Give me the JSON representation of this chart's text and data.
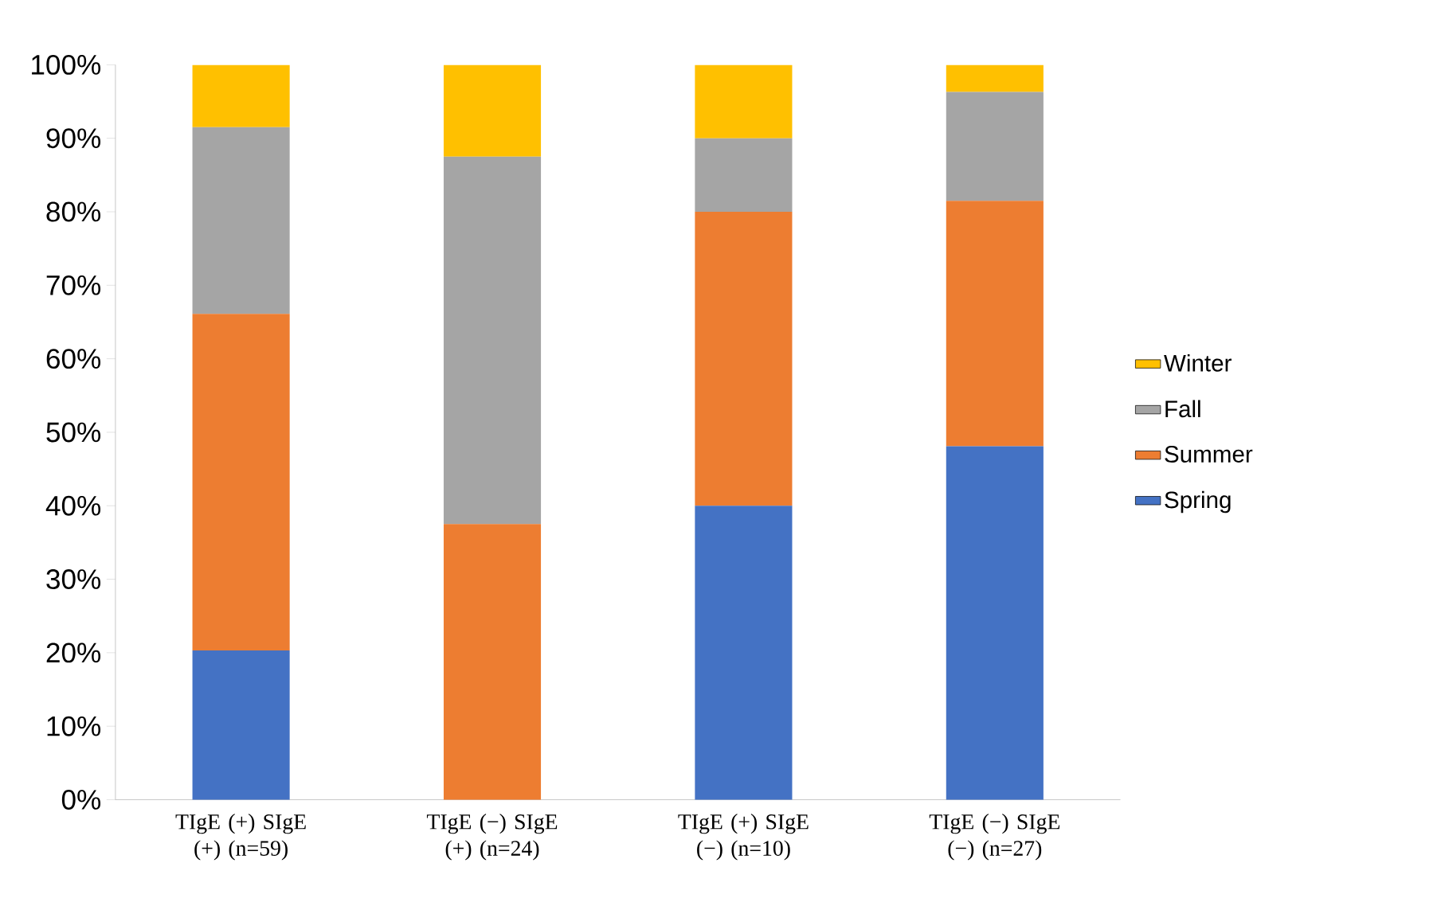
{
  "chart_data": {
    "type": "bar",
    "stacked": true,
    "categories": [
      "TIgE (+) SIgE (+) (n=59)",
      "TIgE (−) SIgE (+) (n=24)",
      "TIgE (+) SIgE (−) (n=10)",
      "TIgE (−) SIgE (−) (n=27)"
    ],
    "series": [
      {
        "name": "Spring",
        "color": "#4472c4",
        "values": [
          20.3,
          0,
          40,
          48.1
        ]
      },
      {
        "name": "Summer",
        "color": "#ed7d31",
        "values": [
          45.8,
          37.5,
          40,
          33.4
        ]
      },
      {
        "name": "Fall",
        "color": "#a5a5a5",
        "values": [
          25.4,
          50,
          10,
          14.8
        ]
      },
      {
        "name": "Winter",
        "color": "#ffc000",
        "values": [
          8.5,
          12.5,
          10,
          3.7
        ]
      }
    ],
    "ylim": [
      0,
      100
    ],
    "yticks": [
      {
        "value": 0,
        "label": "0%"
      },
      {
        "value": 10,
        "label": "10%"
      },
      {
        "value": 20,
        "label": "20%"
      },
      {
        "value": 30,
        "label": "30%"
      },
      {
        "value": 40,
        "label": "40%"
      },
      {
        "value": 50,
        "label": "50%"
      },
      {
        "value": 60,
        "label": "60%"
      },
      {
        "value": 70,
        "label": "70%"
      },
      {
        "value": 80,
        "label": "80%"
      },
      {
        "value": 90,
        "label": "90%"
      },
      {
        "value": 100,
        "label": "100%"
      }
    ],
    "grid": false,
    "legend": "right"
  }
}
